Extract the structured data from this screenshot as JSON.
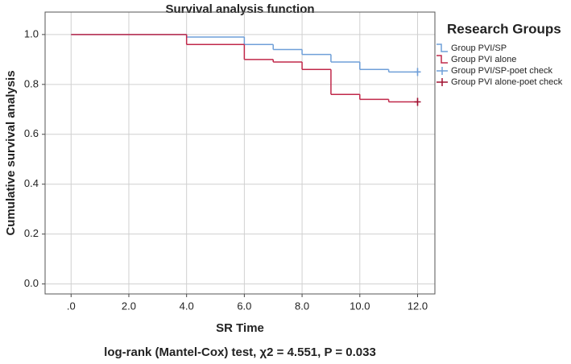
{
  "chart_data": {
    "type": "step",
    "title": "Survival analysis function",
    "x_label": "SR Time",
    "y_label": "Cumulative survival analysis",
    "legend_title": "Research Groups",
    "note": "log-rank (Mantel-Cox) test,  χ2 = 4.551, P = 0.033",
    "xlim": [
      -0.9,
      12.6
    ],
    "ylim": [
      -0.04,
      1.09
    ],
    "xticks": [
      {
        "value": 0,
        "label": ".0"
      },
      {
        "value": 2,
        "label": "2.0"
      },
      {
        "value": 4,
        "label": "4.0"
      },
      {
        "value": 6,
        "label": "6.0"
      },
      {
        "value": 8,
        "label": "8.0"
      },
      {
        "value": 10,
        "label": "10.0"
      },
      {
        "value": 12,
        "label": "12.0"
      }
    ],
    "yticks": [
      {
        "value": 0,
        "label": "0.0"
      },
      0.2,
      0.4,
      0.6,
      0.8,
      {
        "value": 1,
        "label": "1.0"
      }
    ],
    "grid": true,
    "series": [
      {
        "name": "Group PVI/SP",
        "color": "#6f9fd8",
        "marker": "step",
        "x": [
          0,
          4,
          6,
          7,
          8,
          9,
          10,
          11,
          12
        ],
        "values": [
          1.0,
          0.99,
          0.96,
          0.94,
          0.92,
          0.89,
          0.86,
          0.85,
          0.85
        ]
      },
      {
        "name": "Group PVI alone",
        "color": "#c0284a",
        "marker": "step",
        "x": [
          0,
          4,
          6,
          7,
          8,
          9,
          10,
          11,
          12
        ],
        "values": [
          1.0,
          0.96,
          0.9,
          0.89,
          0.86,
          0.76,
          0.74,
          0.73,
          0.73
        ]
      },
      {
        "name": "Group PVI/SP-poet check",
        "color": "#6f9fd8",
        "marker": "plus",
        "x": [
          12
        ],
        "values": [
          0.85
        ]
      },
      {
        "name": "Group PVI alone-poet check",
        "color": "#a01030",
        "marker": "plus",
        "x": [
          12
        ],
        "values": [
          0.73
        ]
      }
    ]
  }
}
